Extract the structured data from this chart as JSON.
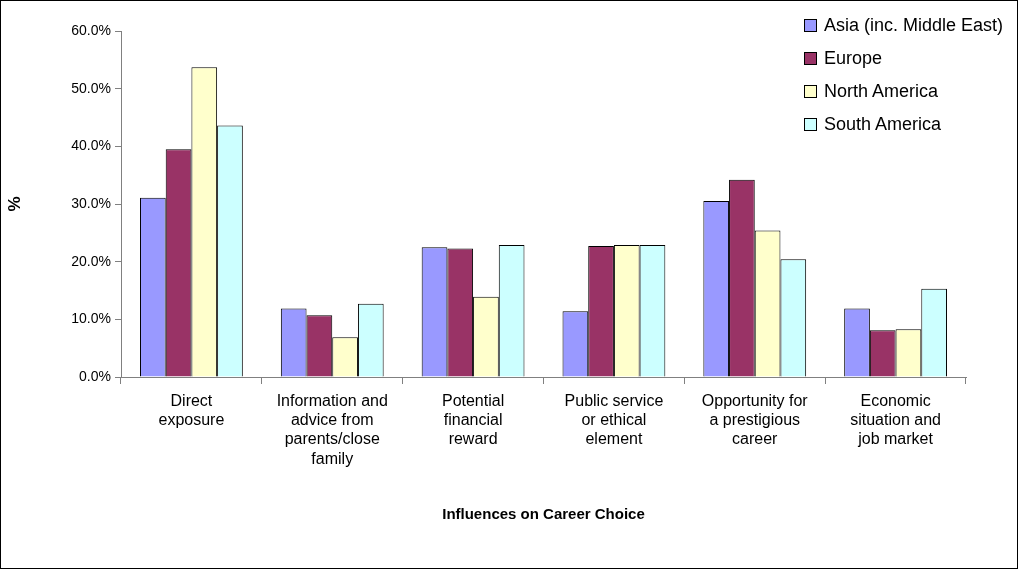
{
  "chart_data": {
    "type": "bar",
    "xlabel": "Influences on Career Choice",
    "ylabel": "%",
    "categories": [
      "Direct exposure",
      "Information and advice from parents/close family",
      "Potential financial reward",
      "Public service or ethical element",
      "Opportunity for a prestigious career",
      "Economic situation and job market"
    ],
    "series": [
      {
        "name": "Asia (inc. Middle East)",
        "color": "#9999ff",
        "values": [
          31.1,
          11.9,
          22.5,
          11.4,
          30.5,
          11.9
        ]
      },
      {
        "name": "Europe",
        "color": "#993366",
        "values": [
          39.5,
          10.7,
          22.3,
          22.7,
          34.2,
          8.1
        ]
      },
      {
        "name": "North America",
        "color": "#ffffcc",
        "values": [
          53.7,
          6.9,
          13.9,
          22.9,
          25.4,
          8.3
        ]
      },
      {
        "name": "South America",
        "color": "#ccffff",
        "values": [
          43.6,
          12.7,
          22.9,
          22.9,
          20.4,
          15.3
        ]
      }
    ],
    "ylim": [
      0,
      60
    ],
    "yticks": [
      {
        "value": 0,
        "label": "0.0%"
      },
      {
        "value": 10,
        "label": "10.0%"
      },
      {
        "value": 20,
        "label": "20.0%"
      },
      {
        "value": 30,
        "label": "30.0%"
      },
      {
        "value": 40,
        "label": "40.0%"
      },
      {
        "value": 50,
        "label": "50.0%"
      },
      {
        "value": 60,
        "label": "60.0%"
      }
    ],
    "grid": false,
    "legend": "top right"
  }
}
